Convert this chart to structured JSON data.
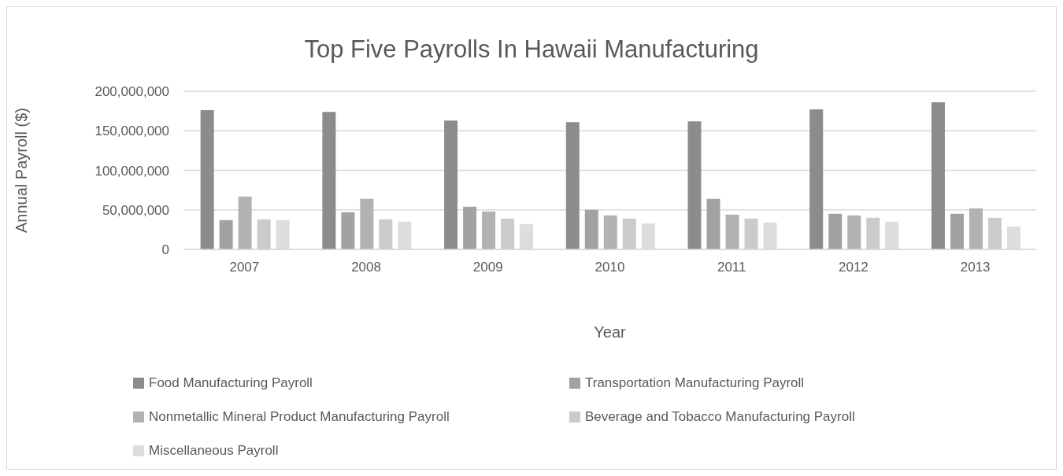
{
  "chart_data": {
    "type": "bar",
    "title": "Top Five Payrolls In Hawaii Manufacturing",
    "xlabel": "Year",
    "ylabel": "Annual Payroll ($)",
    "categories": [
      "2007",
      "2008",
      "2009",
      "2010",
      "2011",
      "2012",
      "2013"
    ],
    "series": [
      {
        "name": "Food Manufacturing Payroll",
        "color": "#8c8c8c",
        "values": [
          176000000,
          174000000,
          163000000,
          161000000,
          162000000,
          177000000,
          186000000
        ]
      },
      {
        "name": "Transportation Manufacturing Payroll",
        "color": "#a2a2a2",
        "values": [
          37000000,
          47000000,
          54000000,
          50000000,
          64000000,
          45000000,
          45000000
        ]
      },
      {
        "name": "Nonmetallic Mineral Product Manufacturing Payroll",
        "color": "#b2b2b2",
        "values": [
          67000000,
          64000000,
          48000000,
          43000000,
          44000000,
          43000000,
          52000000
        ]
      },
      {
        "name": "Beverage and Tobacco Manufacturing Payroll",
        "color": "#cbcbcb",
        "values": [
          38000000,
          38000000,
          39000000,
          39000000,
          39000000,
          40000000,
          40000000
        ]
      },
      {
        "name": "Miscellaneous Payroll",
        "color": "#dddddd",
        "values": [
          37000000,
          35000000,
          32000000,
          33000000,
          34000000,
          35000000,
          29000000
        ]
      }
    ],
    "ylim": [
      0,
      200000000
    ],
    "yticks": [
      0,
      {
        "value": 50000000,
        "label": "50,000,000"
      },
      {
        "value": 100000000,
        "label": "100,000,000"
      },
      {
        "value": 150000000,
        "label": "150,000,000"
      },
      {
        "value": 200000000,
        "label": "200,000,000"
      }
    ],
    "grid": "y",
    "legend": "bottom"
  }
}
